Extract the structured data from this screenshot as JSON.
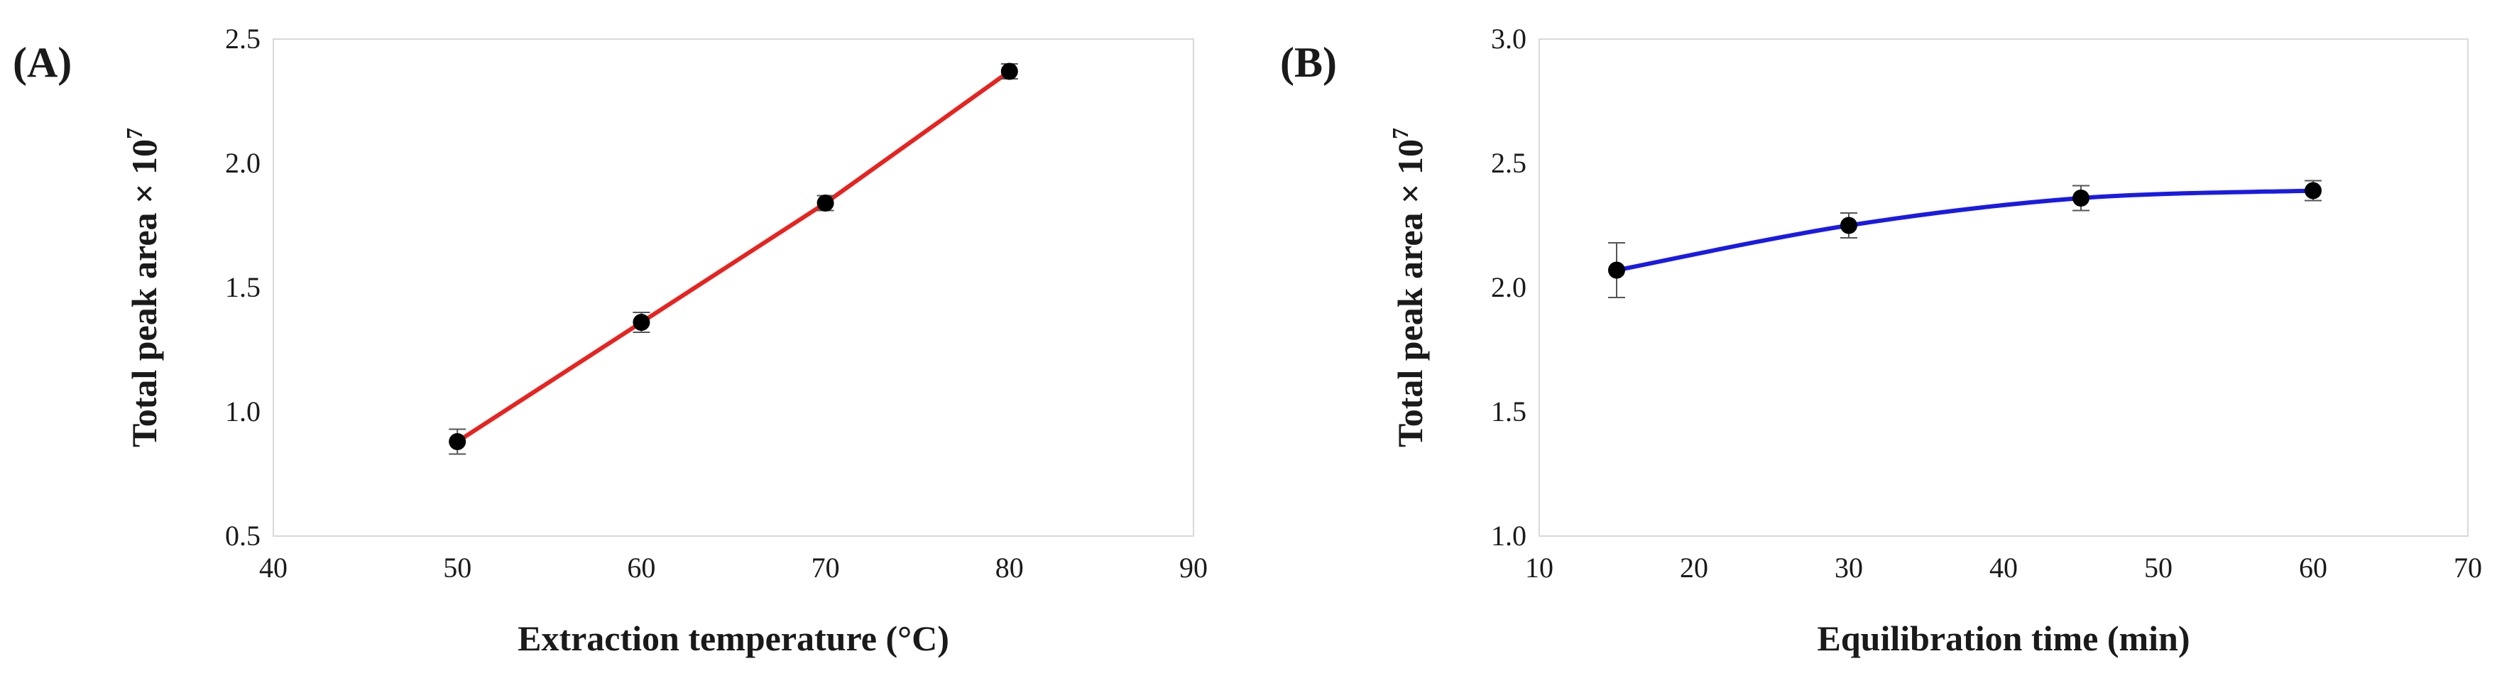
{
  "chart_data": [
    {
      "panel_label": "(A)",
      "type": "line",
      "xlabel": "Extraction temperature (°C)",
      "ylabel_text": "Total peak area × 10",
      "ylabel_exponent": "7",
      "xlim": [
        40,
        90
      ],
      "ylim": [
        0.5,
        2.5
      ],
      "xticks": [
        40,
        50,
        60,
        70,
        80,
        90
      ],
      "yticks": [
        0.5,
        1.0,
        1.5,
        2.0,
        2.5
      ],
      "xtick_labels": [
        "40",
        "50",
        "60",
        "70",
        "80",
        "90"
      ],
      "ytick_labels": [
        "0.5",
        "1.0",
        "1.5",
        "2.0",
        "2.5"
      ],
      "line_color": "#e8231f",
      "marker_color": "#000000",
      "grid": false,
      "series": [
        {
          "x": [
            50,
            60,
            70,
            80
          ],
          "y": [
            0.88,
            1.36,
            1.84,
            2.37
          ],
          "error": [
            0.05,
            0.04,
            0.03,
            0.03
          ]
        }
      ]
    },
    {
      "panel_label": "(B)",
      "type": "line",
      "xlabel": "Equilibration time (min)",
      "ylabel_text": "Total peak area × 10",
      "ylabel_exponent": "7",
      "xlim": [
        10,
        70
      ],
      "ylim": [
        1.0,
        3.0
      ],
      "xticks": [
        10,
        20,
        30,
        40,
        50,
        60,
        70
      ],
      "yticks": [
        1.0,
        1.5,
        2.0,
        2.5,
        3.0
      ],
      "xtick_labels": [
        "10",
        "20",
        "30",
        "40",
        "50",
        "60",
        "70"
      ],
      "ytick_labels": [
        "1.0",
        "1.5",
        "2.0",
        "2.5",
        "3.0"
      ],
      "line_color": "#1a1ae6",
      "marker_color": "#000000",
      "grid": false,
      "smooth": true,
      "series": [
        {
          "x": [
            15,
            30,
            45,
            60
          ],
          "y": [
            2.07,
            2.25,
            2.36,
            2.39
          ],
          "error": [
            0.11,
            0.05,
            0.05,
            0.04
          ]
        }
      ]
    }
  ]
}
